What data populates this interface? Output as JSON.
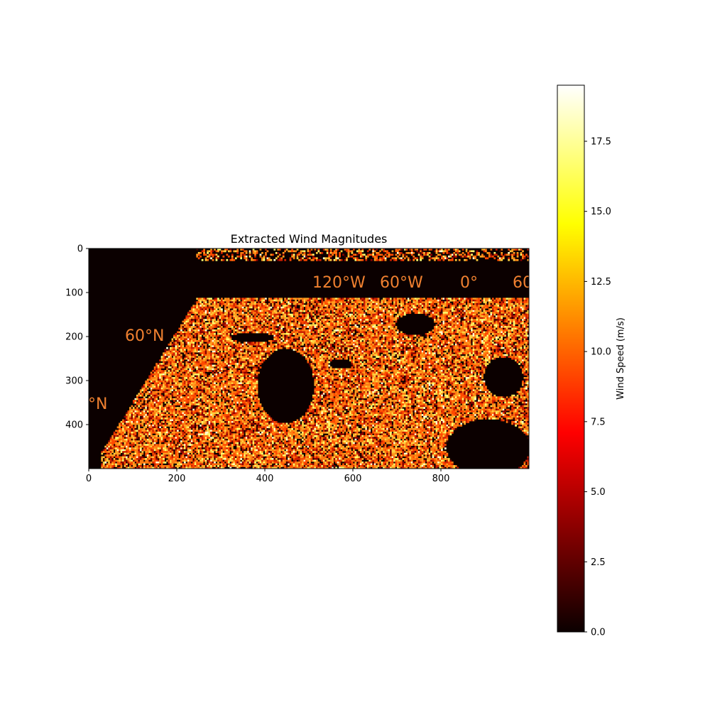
{
  "chart_data": {
    "type": "heatmap",
    "title": "Extracted Wind Magnitudes",
    "colormap": "hot",
    "colormap_stops": [
      "#0b0000",
      "#ff0000",
      "#ffff00",
      "#ffffff"
    ],
    "background_color": "#0b0000",
    "x_range": [
      0,
      1000
    ],
    "y_range": [
      0,
      500
    ],
    "y_inverted": true,
    "x_ticks": [
      0,
      200,
      400,
      600,
      800
    ],
    "x_tick_labels": [
      "0",
      "200",
      "400",
      "600",
      "800"
    ],
    "y_ticks": [
      0,
      100,
      200,
      300,
      400
    ],
    "y_tick_labels": [
      "0",
      "100",
      "200",
      "300",
      "400"
    ],
    "colorbar": {
      "label": "Wind Speed (m/s)",
      "range": [
        0,
        19.5
      ],
      "ticks": [
        0.0,
        2.5,
        5.0,
        7.5,
        10.0,
        12.5,
        15.0,
        17.5
      ],
      "tick_labels": [
        "0.0",
        "2.5",
        "5.0",
        "7.5",
        "10.0",
        "12.5",
        "15.0",
        "17.5"
      ]
    },
    "map_labels": [
      "120°W",
      "60°W",
      "0°",
      "60",
      "60°N",
      "°N"
    ]
  }
}
